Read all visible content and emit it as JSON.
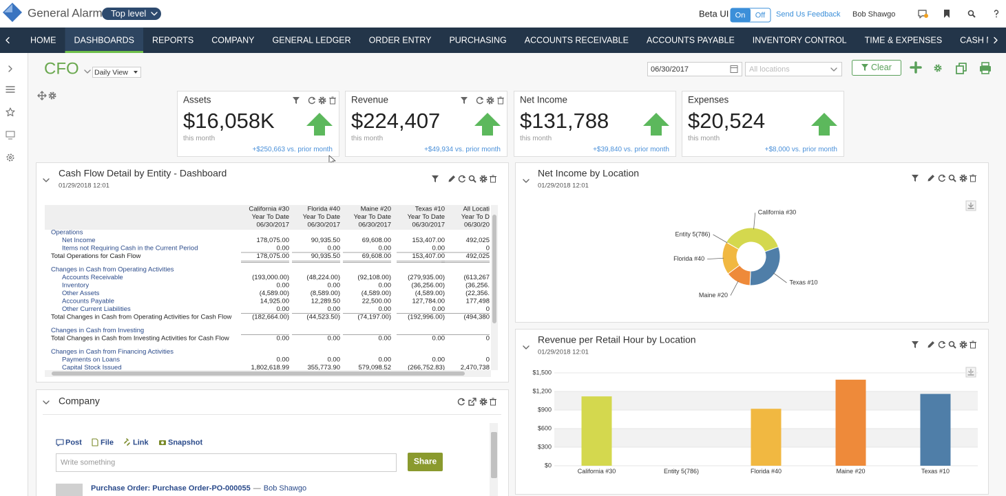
{
  "header": {
    "app_title": "General Alarm",
    "level": "Top level",
    "beta": "Beta UI",
    "on": "On",
    "off": "Off",
    "feedback": "Send Us Feedback",
    "user": "Bob Shawgo"
  },
  "nav": {
    "items": [
      "HOME",
      "DASHBOARDS",
      "REPORTS",
      "COMPANY",
      "GENERAL LEDGER",
      "ORDER ENTRY",
      "PURCHASING",
      "ACCOUNTS RECEIVABLE",
      "ACCOUNTS PAYABLE",
      "INVENTORY CONTROL",
      "TIME & EXPENSES",
      "CASH MANA"
    ],
    "active": 1
  },
  "dashboard": {
    "title": "CFO",
    "view": "Daily View",
    "date": "06/30/2017",
    "locations": "All locations",
    "clear": "Clear"
  },
  "kpis": [
    {
      "title": "Assets",
      "value": "$16,058K",
      "sub": "this month",
      "delta": "+$250,663 vs. prior month"
    },
    {
      "title": "Revenue",
      "value": "$224,407",
      "sub": "this month",
      "delta": "+$49,934 vs. prior month"
    },
    {
      "title": "Net Income",
      "value": "$131,788",
      "sub": "this month",
      "delta": "+$39,840 vs. prior month"
    },
    {
      "title": "Expenses",
      "value": "$20,524",
      "sub": "this month",
      "delta": "+$8,000 vs. prior month"
    }
  ],
  "kpi_tooltip": "250,663.00",
  "cash_flow": {
    "title": "Cash Flow Detail by Entity - Dashboard",
    "timestamp": "01/29/2018 12:01",
    "columns": [
      [
        "California #30",
        "Year To Date",
        "06/30/2017"
      ],
      [
        "Florida #40",
        "Year To Date",
        "06/30/2017"
      ],
      [
        "Maine #20",
        "Year To Date",
        "06/30/2017"
      ],
      [
        "Texas #10",
        "Year To Date",
        "06/30/2017"
      ],
      [
        "All Locati",
        "Year To D",
        "06/30/20"
      ]
    ],
    "rows": [
      {
        "label": "Operations",
        "style": "section",
        "cells": []
      },
      {
        "label": "Net Income",
        "style": "item",
        "cells": [
          "178,075.00",
          "90,935.50",
          "69,608.00",
          "153,407.00",
          "492,025"
        ]
      },
      {
        "label": "Items not Requiring Cash in the Current Period",
        "style": "item",
        "cells": [
          "0.00",
          "0.00",
          "0.00",
          "0.00",
          "0"
        ]
      },
      {
        "label": "Total Operations for Cash Flow",
        "style": "total",
        "cells": [
          "178,075.00",
          "90,935.50",
          "69,608.00",
          "153,407.00",
          "492,025"
        ]
      },
      {
        "label": "Changes in Cash from Operating Activities",
        "style": "section",
        "cells": []
      },
      {
        "label": "Accounts Receivable",
        "style": "item",
        "cells": [
          "(193,000.00)",
          "(48,224.00)",
          "(92,108.00)",
          "(279,935.00)",
          "(613,267"
        ]
      },
      {
        "label": "Inventory",
        "style": "item",
        "cells": [
          "0.00",
          "0.00",
          "0.00",
          "(36,256.00)",
          "(36,256."
        ]
      },
      {
        "label": "Other Assets",
        "style": "item",
        "cells": [
          "(4,589.00)",
          "(8,589.00)",
          "(4,589.00)",
          "(4,589.00)",
          "(22,356."
        ]
      },
      {
        "label": "Accounts Payable",
        "style": "item",
        "cells": [
          "14,925.00",
          "12,289.50",
          "22,500.00",
          "127,784.00",
          "177,498"
        ]
      },
      {
        "label": "Other Current Liabilities",
        "style": "item",
        "cells": [
          "0.00",
          "0.00",
          "0.00",
          "0.00",
          "0"
        ]
      },
      {
        "label": "Total Changes in Cash from Operating Activities for Cash Flow",
        "style": "total",
        "cells": [
          "(182,664.00)",
          "(44,523.50)",
          "(74,197.00)",
          "(192,996.00)",
          "(494,380"
        ]
      },
      {
        "label": "Changes in Cash from Investing",
        "style": "section",
        "cells": []
      },
      {
        "label": "Total Changes in Cash from Investing Activities for Cash Flow",
        "style": "total",
        "cells": [
          "0.00",
          "0.00",
          "0.00",
          "0.00",
          "0"
        ]
      },
      {
        "label": "Changes in Cash from Financing Activities",
        "style": "section",
        "cells": []
      },
      {
        "label": "Payments on Loans",
        "style": "item",
        "cells": [
          "0.00",
          "0.00",
          "0.00",
          "0.00",
          "0"
        ]
      },
      {
        "label": "Capital Stock Issued",
        "style": "item",
        "cells": [
          "1,802,618.99",
          "355,773.90",
          "579,098.52",
          "(266,752.83)",
          "2,470,738"
        ]
      }
    ]
  },
  "chart_data": [
    {
      "type": "pie",
      "title": "Net Income by Location",
      "timestamp": "01/29/2018 12:01",
      "categories": [
        "California #30",
        "Texas #10",
        "Maine #20",
        "Florida #40",
        "Entity 5(786)"
      ],
      "values": [
        178075,
        153407,
        69608,
        90935.5,
        0
      ],
      "colors": [
        "#d4d84e",
        "#4f7ea8",
        "#ee8a3a",
        "#f1b841",
        "#8fbf5a"
      ],
      "donut": true
    },
    {
      "type": "bar",
      "title": "Revenue per Retail Hour by Location",
      "timestamp": "01/29/2018 12:01",
      "categories": [
        "California #30",
        "Entity 5(786)",
        "Florida #40",
        "Maine #20",
        "Texas #10"
      ],
      "values": [
        1120,
        0,
        920,
        1390,
        1160
      ],
      "colors": [
        "#d4d84e",
        "#8fbf5a",
        "#f1b841",
        "#ee8a3a",
        "#4f7ea8"
      ],
      "ylim": [
        0,
        1500
      ],
      "yticks": [
        {
          "value": 0,
          "label": "$0"
        },
        {
          "value": 300,
          "label": "$300"
        },
        {
          "value": 600,
          "label": "$600"
        },
        {
          "value": 900,
          "label": "$900"
        },
        {
          "value": 1200,
          "label": "$1,200"
        },
        {
          "value": 1500,
          "label": "$1,500"
        }
      ],
      "grid": true
    }
  ],
  "company": {
    "title": "Company",
    "tabs": [
      "Post",
      "File",
      "Link",
      "Snapshot"
    ],
    "placeholder": "Write something",
    "share": "Share",
    "feed": [
      {
        "title": "Purchase Order: Purchase Order-PO-000055",
        "separator": "—",
        "author": "Bob Shawgo"
      }
    ]
  }
}
